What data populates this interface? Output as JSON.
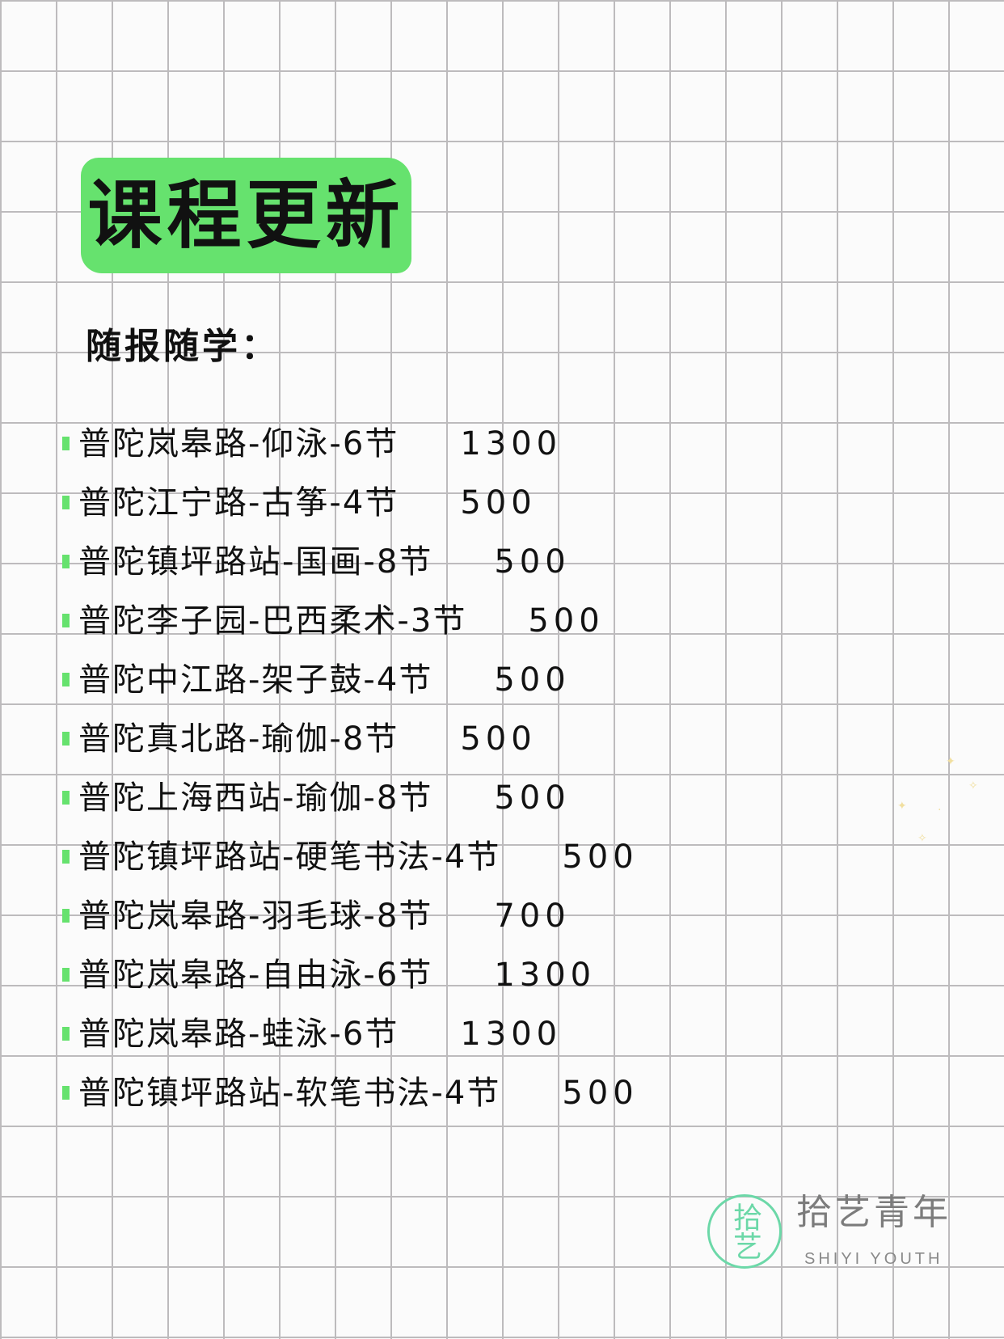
{
  "title": "课程更新",
  "subtitle": "随报随学：",
  "accent_color": "#66e26e",
  "courses": [
    {
      "label": "普陀岚皋路-仰泳-6节",
      "price": "1300"
    },
    {
      "label": "普陀江宁路-古筝-4节",
      "price": "500"
    },
    {
      "label": "普陀镇坪路站-国画-8节",
      "price": "500"
    },
    {
      "label": "普陀李子园-巴西柔术-3节",
      "price": "500"
    },
    {
      "label": "普陀中江路-架子鼓-4节",
      "price": "500"
    },
    {
      "label": "普陀真北路-瑜伽-8节",
      "price": "500"
    },
    {
      "label": "普陀上海西站-瑜伽-8节",
      "price": "500"
    },
    {
      "label": "普陀镇坪路站-硬笔书法-4节",
      "price": "500"
    },
    {
      "label": "普陀岚皋路-羽毛球-8节",
      "price": "700"
    },
    {
      "label": "普陀岚皋路-自由泳-6节",
      "price": "1300"
    },
    {
      "label": "普陀岚皋路-蛙泳-6节",
      "price": "1300"
    },
    {
      "label": "普陀镇坪路站-软笔书法-4节",
      "price": "500"
    }
  ],
  "logo": {
    "mark": "拾艺",
    "name": "拾艺青年",
    "name_en": "SHIYI YOUTH",
    "color": "#6cd8a8"
  }
}
